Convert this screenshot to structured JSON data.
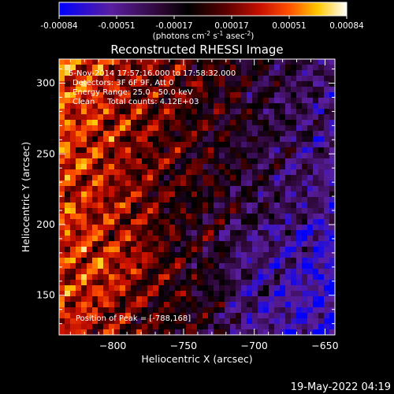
{
  "colorbar": {
    "tick_labels": [
      "-0.00084",
      "-0.00051",
      "-0.00017",
      "0.00017",
      "0.00051",
      "0.00084"
    ],
    "units": {
      "prefix": "(photons cm",
      "exp1": "-2",
      "mid1": " s",
      "exp2": "-1",
      "mid2": " asec",
      "exp3": "-2",
      "suffix": ")"
    },
    "range": [
      -0.00084,
      0.00084
    ]
  },
  "chart_data": {
    "type": "heatmap",
    "title": "Reconstructed RHESSI Image",
    "xlabel": "Heliocentric X (arcsec)",
    "ylabel": "Heliocentric Y (arcsec)",
    "xlim": [
      -838,
      -643
    ],
    "ylim": [
      122,
      317
    ],
    "x_ticks": [
      -800,
      -750,
      -700,
      -650
    ],
    "y_ticks": [
      150,
      200,
      250,
      300
    ],
    "x_tick_labels": [
      "−800",
      "−750",
      "−700",
      "−650"
    ],
    "y_tick_labels": [
      "150",
      "200",
      "250",
      "300"
    ],
    "grid": false,
    "colormap": "red-temperature",
    "peak": [
      -788,
      168
    ],
    "annotations": {
      "time": "5-Nov-2014 17:57:16.000 to 17:58:32.000",
      "detectors": "Detectors: 3F 6F 9F, Att 0",
      "energy": "Energy Range: 25.0 - 50.0 keV",
      "method": "Clean     Total counts: 4.12E+03",
      "peak_text": "Position of Peak = [-788,168]"
    }
  },
  "footer": {
    "timestamp": "19-May-2022 04:19"
  },
  "colors": {
    "background": "#000000",
    "text": "#ffffff",
    "colormap_stops": [
      "#0000ff",
      "#5a1ea0",
      "#3a0a3a",
      "#000000",
      "#500000",
      "#c80000",
      "#ff5000",
      "#ffc800",
      "#ffffff"
    ]
  }
}
